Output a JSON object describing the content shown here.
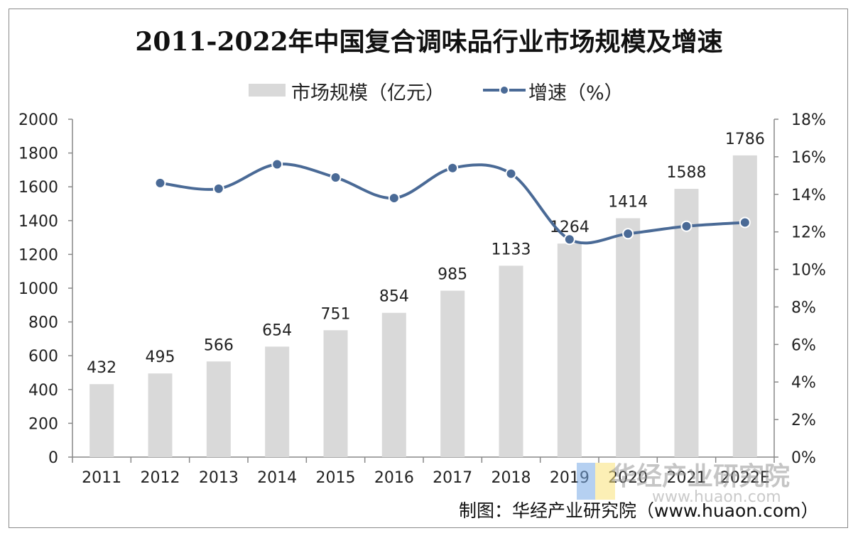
{
  "title": "2011-2022年中国复合调味品行业市场规模及增速",
  "footer": "制图：华经产业研究院（www.huaon.com）",
  "watermark": "华经产业研究院",
  "watermark_url": "www.huaon.com",
  "colors": {
    "bar": "#d9d9d9",
    "line": "#4a6a96",
    "marker": "#4a6a96",
    "marker_outline": "#ffffff"
  },
  "chart_data": {
    "type": "bar",
    "categories": [
      "2011",
      "2012",
      "2013",
      "2014",
      "2015",
      "2016",
      "2017",
      "2018",
      "2019",
      "2020",
      "2021",
      "2022E"
    ],
    "series": [
      {
        "name": "市场规模（亿元）",
        "type": "bar",
        "axis": "left",
        "values": [
          432,
          495,
          566,
          654,
          751,
          854,
          985,
          1133,
          1264,
          1414,
          1588,
          1786
        ]
      },
      {
        "name": "增速（%）",
        "type": "line",
        "axis": "right",
        "values": [
          null,
          14.6,
          14.3,
          15.6,
          14.9,
          13.8,
          15.4,
          15.1,
          11.6,
          11.9,
          12.3,
          12.5
        ]
      }
    ],
    "y_left": {
      "ylim": [
        0,
        2000
      ],
      "ticks": [
        "0",
        "200",
        "400",
        "600",
        "800",
        "1000",
        "1200",
        "1400",
        "1600",
        "1800",
        "2000"
      ]
    },
    "y_right": {
      "ylim": [
        0,
        18
      ],
      "ticks": [
        "0%",
        "2%",
        "4%",
        "6%",
        "8%",
        "10%",
        "12%",
        "14%",
        "16%",
        "18%"
      ]
    },
    "legend_placement": "top-center",
    "grid": false
  }
}
